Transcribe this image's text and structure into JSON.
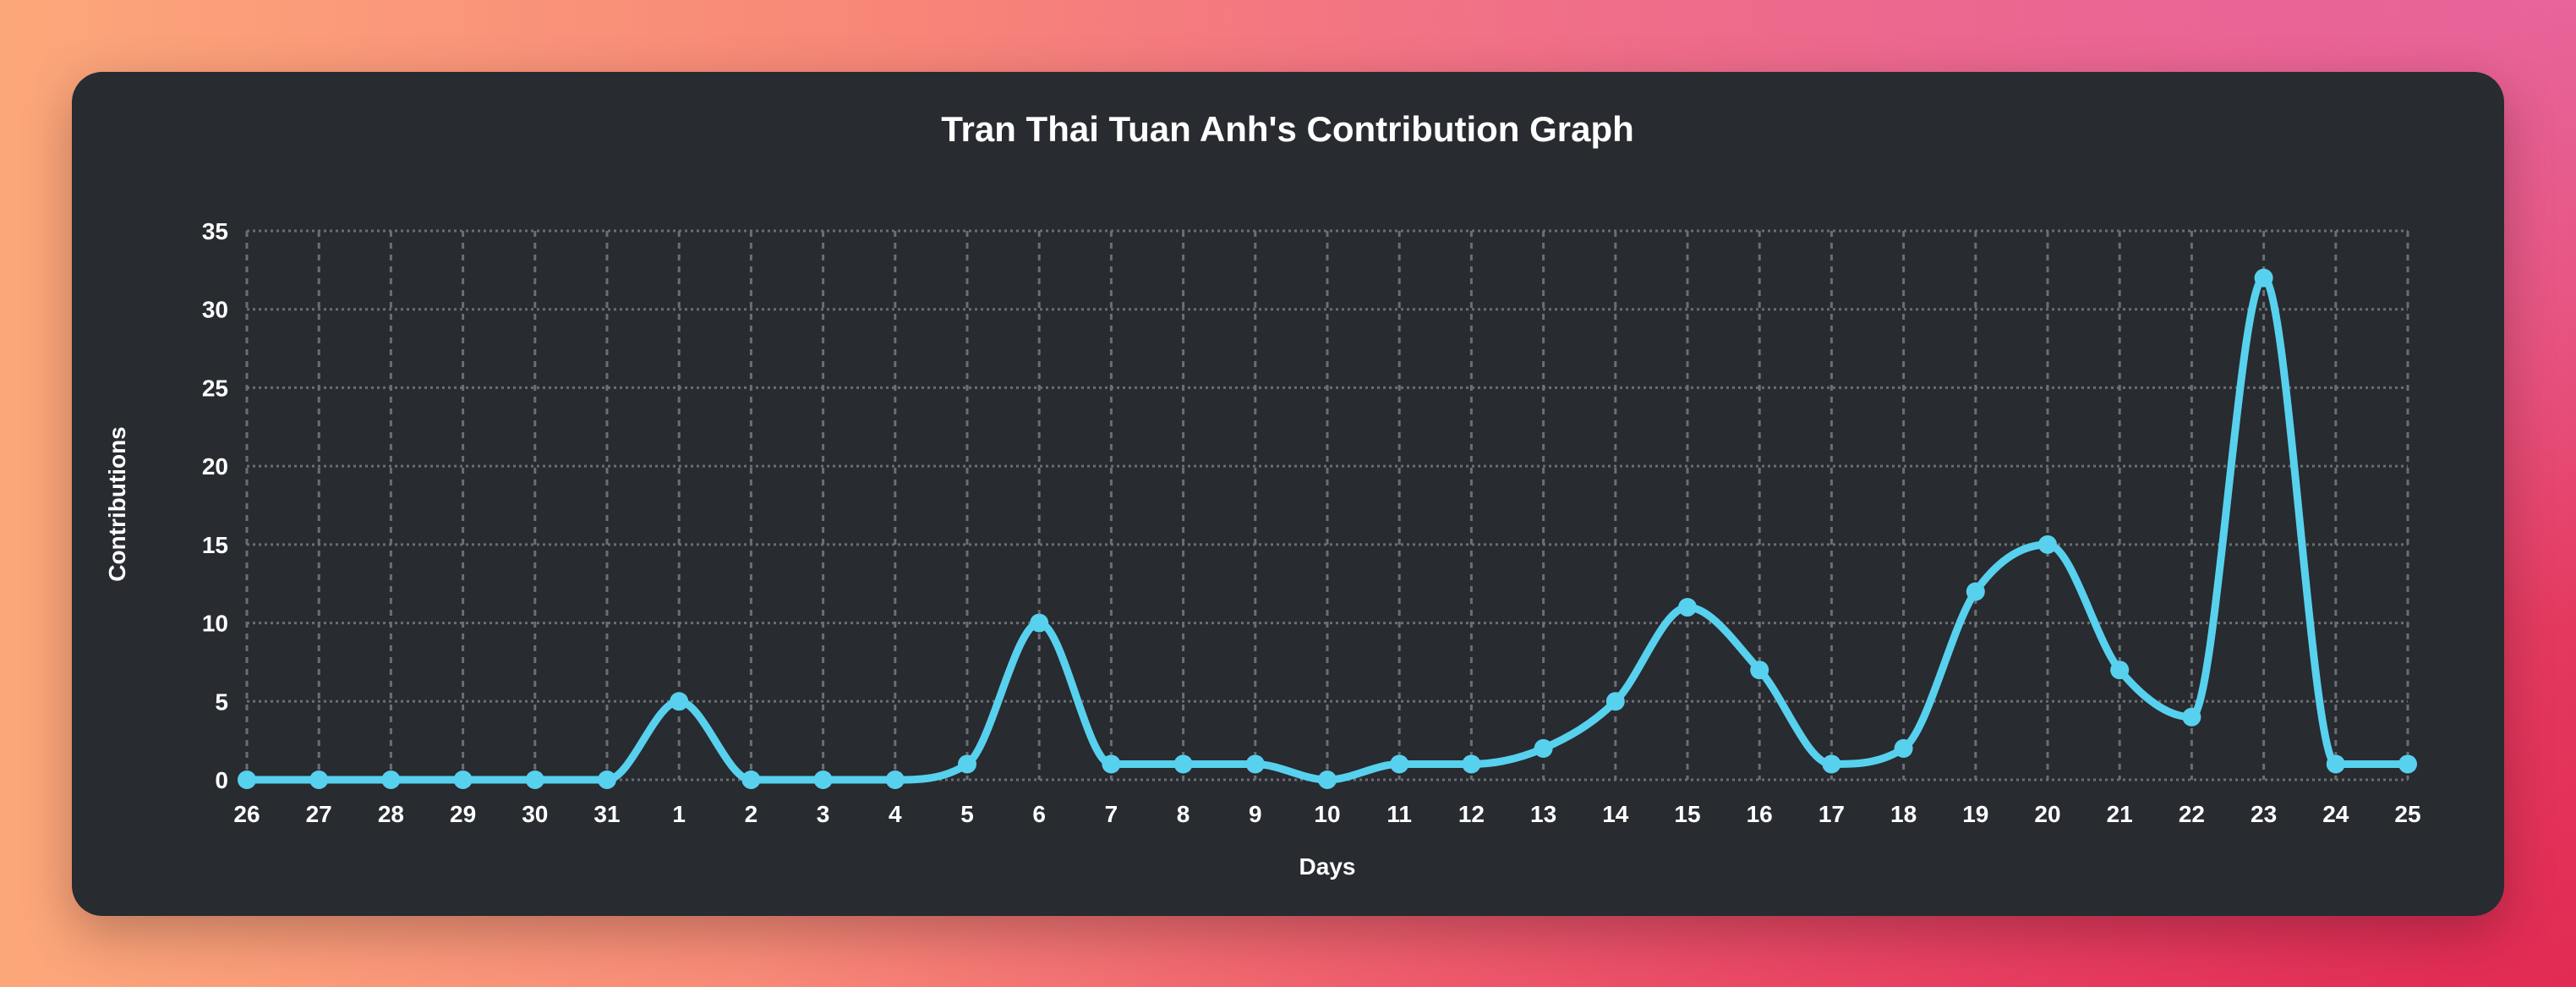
{
  "chart_data": {
    "type": "line",
    "title": "Tran Thai Tuan Anh's Contribution Graph",
    "xlabel": "Days",
    "ylabel": "Contributions",
    "categories": [
      "26",
      "27",
      "28",
      "29",
      "30",
      "31",
      "1",
      "2",
      "3",
      "4",
      "5",
      "6",
      "7",
      "8",
      "9",
      "10",
      "11",
      "12",
      "13",
      "14",
      "15",
      "16",
      "17",
      "18",
      "19",
      "20",
      "21",
      "22",
      "23",
      "24",
      "25"
    ],
    "values": [
      0,
      0,
      0,
      0,
      0,
      0,
      5,
      0,
      0,
      0,
      1,
      10,
      1,
      1,
      1,
      0,
      1,
      1,
      2,
      5,
      11,
      7,
      1,
      2,
      12,
      15,
      7,
      4,
      32,
      1,
      1
    ],
    "ylim": [
      0,
      35
    ],
    "yticks": [
      "0",
      "5",
      "10",
      "15",
      "20",
      "25",
      "30",
      "35"
    ],
    "grid": true,
    "line_color": "#57d1ee",
    "background_color": "#282b30"
  }
}
